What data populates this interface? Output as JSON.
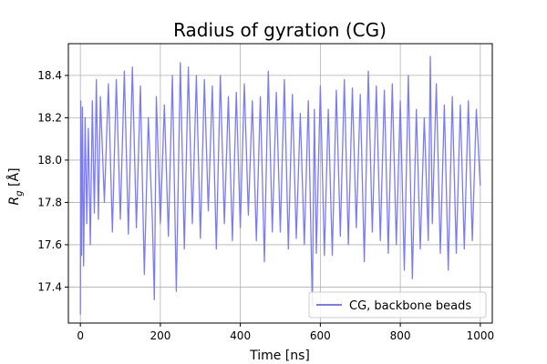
{
  "chart_data": {
    "type": "line",
    "title": "Radius of gyration (CG)",
    "xlabel": "Time [ns]",
    "ylabel_main": "R",
    "ylabel_sub": "g",
    "ylabel_unit": " [Å]",
    "xlim": [
      -30,
      1030
    ],
    "ylim": [
      17.23,
      18.55
    ],
    "xticks": [
      0,
      200,
      400,
      600,
      800,
      1000
    ],
    "xtick_labels": [
      "0",
      "200",
      "400",
      "600",
      "800",
      "1000"
    ],
    "yticks": [
      17.4,
      17.6,
      17.8,
      18.0,
      18.2,
      18.4
    ],
    "ytick_labels": [
      "17.4",
      "17.6",
      "17.8",
      "18.0",
      "18.2",
      "18.4"
    ],
    "grid": true,
    "legend_position": "lower-right",
    "series": [
      {
        "name": "CG, backbone beads",
        "color": "#7b7bf7",
        "x": [
          0,
          1,
          3,
          5,
          8,
          12,
          16,
          20,
          25,
          30,
          35,
          40,
          45,
          50,
          60,
          70,
          80,
          90,
          100,
          110,
          120,
          130,
          140,
          150,
          160,
          170,
          180,
          185,
          190,
          200,
          210,
          220,
          230,
          240,
          250,
          260,
          270,
          280,
          290,
          300,
          310,
          320,
          330,
          340,
          350,
          360,
          370,
          380,
          390,
          400,
          410,
          420,
          430,
          440,
          450,
          460,
          470,
          480,
          490,
          500,
          510,
          520,
          530,
          540,
          550,
          560,
          570,
          580,
          585,
          590,
          600,
          610,
          620,
          630,
          640,
          650,
          660,
          670,
          680,
          690,
          700,
          710,
          720,
          730,
          740,
          750,
          760,
          770,
          780,
          790,
          800,
          810,
          820,
          830,
          840,
          850,
          860,
          870,
          875,
          880,
          890,
          900,
          910,
          920,
          930,
          940,
          950,
          960,
          970,
          980,
          990,
          1000
        ],
        "y": [
          17.27,
          18.28,
          17.55,
          18.25,
          17.5,
          18.2,
          17.7,
          18.15,
          17.6,
          18.28,
          17.75,
          18.38,
          17.72,
          18.3,
          17.8,
          18.36,
          17.66,
          18.38,
          17.72,
          18.42,
          17.65,
          18.44,
          17.68,
          18.35,
          17.46,
          18.2,
          17.72,
          17.34,
          18.3,
          17.7,
          18.26,
          17.64,
          18.4,
          17.38,
          18.46,
          17.58,
          18.44,
          17.7,
          18.4,
          17.63,
          18.38,
          17.76,
          18.35,
          17.58,
          18.4,
          17.7,
          18.3,
          17.62,
          18.32,
          17.68,
          18.36,
          17.74,
          18.28,
          17.62,
          18.3,
          17.52,
          18.42,
          17.66,
          18.32,
          17.66,
          18.38,
          17.58,
          18.31,
          17.63,
          18.22,
          17.6,
          18.28,
          17.31,
          18.24,
          17.56,
          18.35,
          17.55,
          18.24,
          17.55,
          18.33,
          17.64,
          18.38,
          17.6,
          18.34,
          17.68,
          18.31,
          17.52,
          18.42,
          17.66,
          18.35,
          17.62,
          18.33,
          17.56,
          18.36,
          17.6,
          18.28,
          17.48,
          18.4,
          17.44,
          18.24,
          17.58,
          18.2,
          17.62,
          18.49,
          17.7,
          18.36,
          17.56,
          18.26,
          17.48,
          18.3,
          17.56,
          18.26,
          17.58,
          18.28,
          17.62,
          18.24,
          17.88
        ]
      }
    ]
  }
}
